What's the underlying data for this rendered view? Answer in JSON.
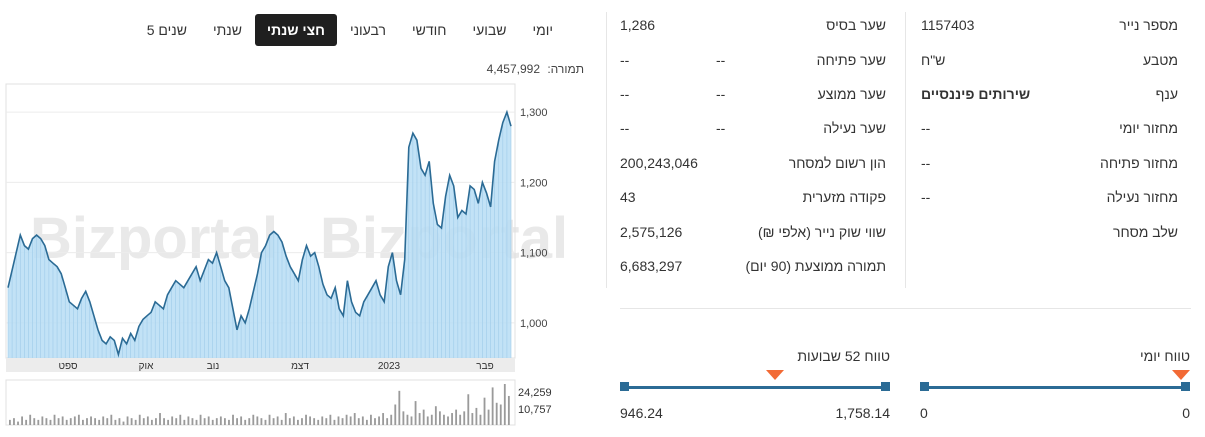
{
  "tabs": [
    {
      "label": "יומי",
      "active": false
    },
    {
      "label": "שבועי",
      "active": false
    },
    {
      "label": "חודשי",
      "active": false
    },
    {
      "label": "רבעוני",
      "active": false
    },
    {
      "label": "חצי שנתי",
      "active": true
    },
    {
      "label": "שנתי",
      "active": false
    },
    {
      "label": "5 שנים",
      "active": false
    }
  ],
  "volume_readout": {
    "label": "תמורה:",
    "value": "4,457,992"
  },
  "watermark": "Bizportal",
  "colors": {
    "line": "#2b6b95",
    "area": "#b7ddf5",
    "marker": "#f26a35",
    "bar": "#2b6b95"
  },
  "chart_data": {
    "type": "area",
    "y_ticks": [
      "1,300",
      "1,200",
      "1,100",
      "1,000"
    ],
    "ylim": [
      950,
      1340
    ],
    "x_labels": [
      "ספט",
      "אוק",
      "נוב",
      "דצמ",
      "2023",
      "פבר"
    ],
    "values": [
      1050,
      1075,
      1100,
      1125,
      1110,
      1105,
      1120,
      1125,
      1120,
      1110,
      1090,
      1085,
      1080,
      1070,
      1050,
      1030,
      1025,
      1020,
      1035,
      1045,
      1030,
      1010,
      990,
      975,
      970,
      980,
      975,
      955,
      978,
      970,
      985,
      975,
      995,
      1005,
      1010,
      1015,
      1030,
      1025,
      1020,
      1040,
      1050,
      1060,
      1055,
      1050,
      1060,
      1070,
      1080,
      1060,
      1075,
      1090,
      1085,
      1100,
      1080,
      1060,
      1050,
      1020,
      990,
      1010,
      1000,
      1020,
      1045,
      1070,
      1100,
      1110,
      1125,
      1130,
      1125,
      1115,
      1095,
      1080,
      1070,
      1060,
      1090,
      1110,
      1095,
      1100,
      1080,
      1055,
      1040,
      1035,
      1050,
      1020,
      1010,
      1060,
      1030,
      1015,
      1010,
      1030,
      1040,
      1050,
      1060,
      1040,
      1030,
      1080,
      1100,
      1060,
      1040,
      1090,
      1250,
      1270,
      1260,
      1220,
      1210,
      1230,
      1170,
      1140,
      1135,
      1180,
      1210,
      1195,
      1150,
      1160,
      1155,
      1195,
      1190,
      1170,
      1200,
      1185,
      1165,
      1230,
      1260,
      1285,
      1300,
      1280
    ],
    "volume": {
      "ticks": [
        "24,259",
        "10,757"
      ],
      "bars": [
        3,
        4,
        2,
        5,
        3,
        6,
        4,
        3,
        5,
        4,
        3,
        6,
        4,
        5,
        3,
        4,
        5,
        6,
        3,
        4,
        5,
        4,
        3,
        5,
        4,
        6,
        3,
        4,
        2,
        5,
        4,
        3,
        6,
        4,
        5,
        3,
        4,
        7,
        4,
        3,
        5,
        4,
        6,
        3,
        5,
        4,
        3,
        6,
        4,
        5,
        3,
        4,
        5,
        4,
        3,
        6,
        4,
        5,
        3,
        4,
        6,
        5,
        4,
        3,
        6,
        4,
        5,
        3,
        7,
        4,
        5,
        3,
        4,
        6,
        5,
        4,
        3,
        5,
        4,
        6,
        3,
        5,
        4,
        6,
        5,
        7,
        4,
        5,
        3,
        6,
        4,
        5,
        7,
        4,
        6,
        12,
        20,
        8,
        6,
        5,
        14,
        7,
        9,
        5,
        6,
        11,
        8,
        6,
        5,
        7,
        9,
        6,
        8,
        18,
        7,
        10,
        6,
        16,
        9,
        22,
        13,
        12,
        24,
        17
      ]
    }
  },
  "details_right": [
    {
      "label": "מספר נייר",
      "value": "1157403"
    },
    {
      "label": "מטבע",
      "value": "ש\"ח"
    },
    {
      "label": "ענף",
      "value": "שירותים פיננסיים"
    },
    {
      "label": "מחזור יומי",
      "value": "--"
    },
    {
      "label": "מחזור פתיחה",
      "value": "--"
    },
    {
      "label": "מחזור נעילה",
      "value": "--"
    },
    {
      "label": "שלב מסחר",
      "value": ""
    }
  ],
  "details_mid": [
    {
      "label": "שער בסיס",
      "value": "1,286",
      "value2": ""
    },
    {
      "label": "שער פתיחה",
      "value": "--",
      "value2": "--"
    },
    {
      "label": "שער ממוצע",
      "value": "--",
      "value2": "--"
    },
    {
      "label": "שער נעילה",
      "value": "--",
      "value2": "--"
    },
    {
      "label": "הון רשום למסחר",
      "value": "200,243,046",
      "value2": ""
    },
    {
      "label": "פקודה מזערית",
      "value": "43",
      "value2": ""
    },
    {
      "label": "שווי שוק נייר (אלפי ₪)",
      "value": "2,575,126",
      "value2": ""
    },
    {
      "label": "תמורה ממוצעת (90 יום)",
      "value": "6,683,297",
      "value2": ""
    }
  ],
  "range_52w": {
    "title": "טווח 52 שבועות",
    "low": "946.24",
    "high": "1,758.14",
    "position": 0.42
  },
  "range_day": {
    "title": "טווח יומי",
    "low": "0",
    "high": "0",
    "position": 0.0
  }
}
